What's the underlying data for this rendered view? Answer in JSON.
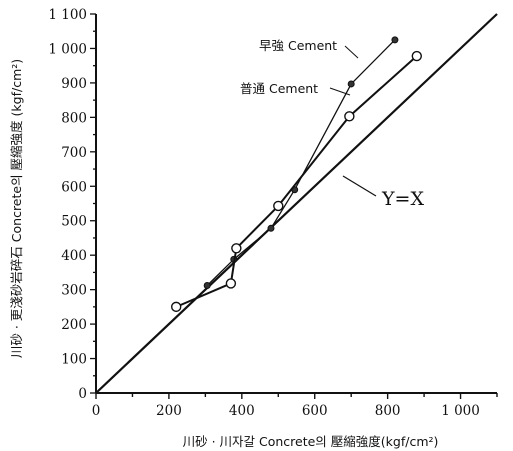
{
  "chart_data": {
    "type": "line",
    "title": "",
    "xlabel": "川砂 · 川자갈 Concrete의 壓縮強度(kgf/cm²)",
    "ylabel": "川砂 · 更淺砂岩碎石 Concrete의 壓縮強度 (kgf/cm²)",
    "xlim": [
      0,
      1100
    ],
    "ylim": [
      0,
      1100
    ],
    "x_ticks": [
      0,
      200,
      400,
      600,
      800,
      1000
    ],
    "x_tick_labels": [
      "0",
      "200",
      "400",
      "600",
      "800",
      "1 000"
    ],
    "y_ticks": [
      0,
      100,
      200,
      300,
      400,
      500,
      600,
      700,
      800,
      900,
      1000,
      1100
    ],
    "y_tick_labels": [
      "0",
      "100",
      "200",
      "300",
      "400",
      "500",
      "600",
      "700",
      "800",
      "900",
      "1 000",
      "1 100"
    ],
    "grid": false,
    "series": [
      {
        "name": "早強 Cement",
        "marker": "filled",
        "points": [
          [
            305,
            312
          ],
          [
            378,
            388
          ],
          [
            480,
            478
          ],
          [
            545,
            590
          ],
          [
            700,
            897
          ],
          [
            820,
            1025
          ]
        ]
      },
      {
        "name": "普通 Cement",
        "marker": "open",
        "points": [
          [
            220,
            250
          ],
          [
            370,
            318
          ],
          [
            385,
            420
          ],
          [
            500,
            543
          ],
          [
            695,
            803
          ],
          [
            880,
            978
          ]
        ]
      }
    ],
    "reference_line": {
      "name": "Y=X",
      "x": [
        0,
        1100
      ],
      "y": [
        0,
        1100
      ]
    }
  }
}
